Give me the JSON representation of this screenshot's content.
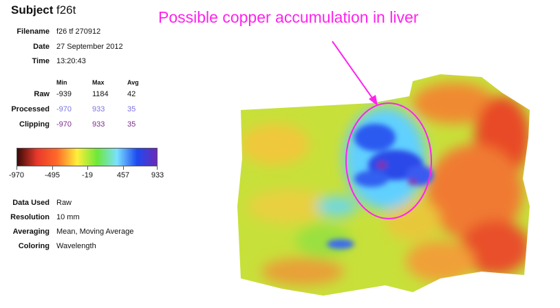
{
  "subject": {
    "label": "Subject",
    "value": "f26t"
  },
  "info": [
    {
      "label": "Filename",
      "value": "f26 tf 270912"
    },
    {
      "label": "Date",
      "value": "27 September 2012"
    },
    {
      "label": "Time",
      "value": "13:20:43"
    }
  ],
  "stats": {
    "headers": [
      "Min",
      "Max",
      "Avg"
    ],
    "rows": [
      {
        "label": "Raw",
        "values": [
          "-939",
          "1184",
          "42"
        ],
        "color": "#111111"
      },
      {
        "label": "Processed",
        "values": [
          "-970",
          "933",
          "35"
        ],
        "color": "#7a72e0"
      },
      {
        "label": "Clipping",
        "values": [
          "-970",
          "933",
          "35"
        ],
        "color": "#7a2a8a"
      }
    ]
  },
  "colorbar": {
    "ticks": [
      "-970",
      "-495",
      "-19",
      "457",
      "933"
    ],
    "colors": [
      "#3a0a08",
      "#e8392a",
      "#ff6a2a",
      "#ffef3a",
      "#6ee83a",
      "#7ae0ff",
      "#1e4af0",
      "#6a2ab8"
    ]
  },
  "settings": [
    {
      "label": "Data Used",
      "value": "Raw"
    },
    {
      "label": "Resolution",
      "value": "10 mm"
    },
    {
      "label": "Averaging",
      "value": "Mean, Moving Average"
    },
    {
      "label": "Coloring",
      "value": "Wavelength"
    }
  ],
  "annotation": {
    "text": "Possible copper accumulation in liver",
    "color": "#ff22ee"
  }
}
